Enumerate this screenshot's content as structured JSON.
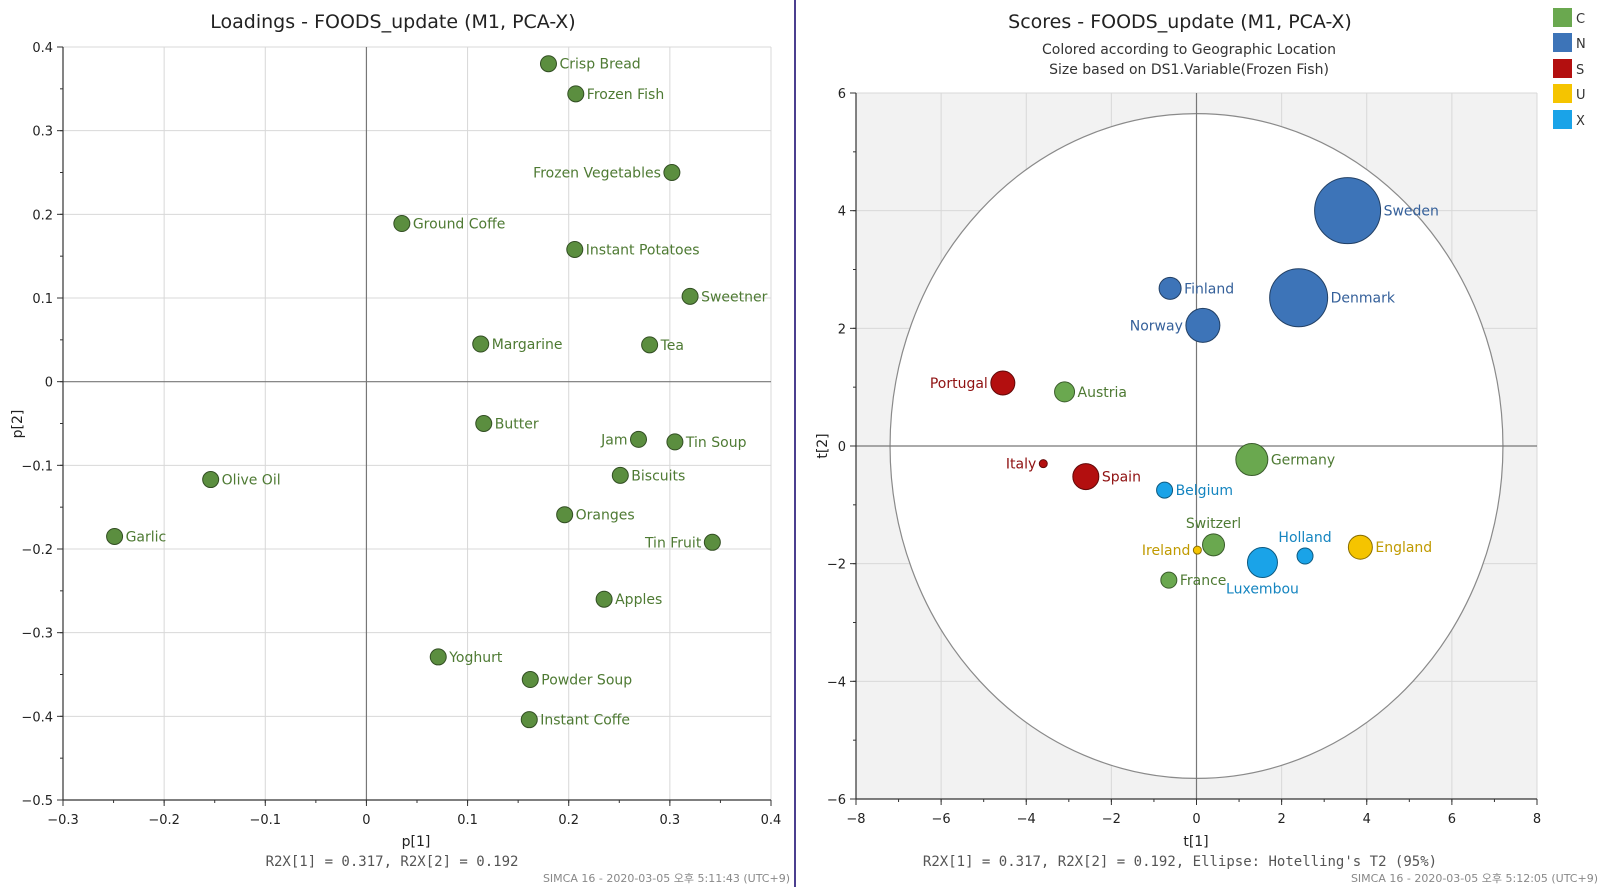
{
  "divider_color": "#4b3f8f",
  "loadings": {
    "title": "Loadings - FOODS_update (M1, PCA-X)",
    "xlabel": "p[1]",
    "ylabel": "p[2]",
    "footer": "R2X[1] = 0.317, R2X[2] = 0.192",
    "stamp": "SIMCA 16 - 2020-03-05 오후 5:11:43 (UTC+9)"
  },
  "scores": {
    "title": "Scores - FOODS_update (M1, PCA-X)",
    "subtitle1": "Colored according to Geographic Location",
    "subtitle2": "Size based on DS1.Variable(Frozen Fish)",
    "xlabel": "t[1]",
    "ylabel": "t[2]",
    "footer": "R2X[1] = 0.317, R2X[2] = 0.192, Ellipse: Hotelling's T2 (95%)",
    "stamp": "SIMCA 16 - 2020-03-05 오후 5:12:05 (UTC+9)",
    "legend": [
      {
        "label": "C",
        "color": "#6aa84f"
      },
      {
        "label": "N",
        "color": "#3d74b8"
      },
      {
        "label": "S",
        "color": "#b30f0f"
      },
      {
        "label": "U",
        "color": "#f5c400"
      },
      {
        "label": "X",
        "color": "#1aa3e8"
      }
    ]
  },
  "chart_data": [
    {
      "type": "scatter",
      "title": "Loadings - FOODS_update (M1, PCA-X)",
      "xlabel": "p[1]",
      "ylabel": "p[2]",
      "xlim": [
        -0.3,
        0.4
      ],
      "ylim": [
        -0.5,
        0.4
      ],
      "xticks": [
        -0.3,
        -0.2,
        -0.1,
        0,
        0.1,
        0.2,
        0.3,
        0.4
      ],
      "yticks": [
        -0.5,
        -0.4,
        -0.3,
        -0.2,
        -0.1,
        0,
        0.1,
        0.2,
        0.3,
        0.4
      ],
      "color": "#5b8e3f",
      "points": [
        {
          "label": "Crisp Bread",
          "x": 0.18,
          "y": 0.38,
          "pos": "right"
        },
        {
          "label": "Frozen Fish",
          "x": 0.207,
          "y": 0.344,
          "pos": "right"
        },
        {
          "label": "Frozen Vegetables",
          "x": 0.302,
          "y": 0.25,
          "pos": "left"
        },
        {
          "label": "Ground Coffe",
          "x": 0.035,
          "y": 0.189,
          "pos": "right"
        },
        {
          "label": "Instant Potatoes",
          "x": 0.206,
          "y": 0.158,
          "pos": "right"
        },
        {
          "label": "Sweetner",
          "x": 0.32,
          "y": 0.102,
          "pos": "right"
        },
        {
          "label": "Margarine",
          "x": 0.113,
          "y": 0.045,
          "pos": "right"
        },
        {
          "label": "Tea",
          "x": 0.28,
          "y": 0.044,
          "pos": "right"
        },
        {
          "label": "Butter",
          "x": 0.116,
          "y": -0.05,
          "pos": "right"
        },
        {
          "label": "Jam",
          "x": 0.269,
          "y": -0.069,
          "pos": "left"
        },
        {
          "label": "Tin Soup",
          "x": 0.305,
          "y": -0.072,
          "pos": "right"
        },
        {
          "label": "Olive Oil",
          "x": -0.154,
          "y": -0.117,
          "pos": "right"
        },
        {
          "label": "Biscuits",
          "x": 0.251,
          "y": -0.112,
          "pos": "right"
        },
        {
          "label": "Oranges",
          "x": 0.196,
          "y": -0.159,
          "pos": "right"
        },
        {
          "label": "Garlic",
          "x": -0.249,
          "y": -0.185,
          "pos": "right"
        },
        {
          "label": "Tin Fruit",
          "x": 0.342,
          "y": -0.192,
          "pos": "left"
        },
        {
          "label": "Apples",
          "x": 0.235,
          "y": -0.26,
          "pos": "right"
        },
        {
          "label": "Yoghurt",
          "x": 0.071,
          "y": -0.329,
          "pos": "right"
        },
        {
          "label": "Powder Soup",
          "x": 0.162,
          "y": -0.356,
          "pos": "right"
        },
        {
          "label": "Instant Coffe",
          "x": 0.161,
          "y": -0.404,
          "pos": "right"
        }
      ]
    },
    {
      "type": "scatter",
      "title": "Scores - FOODS_update (M1, PCA-X)",
      "subtitle": "Colored according to Geographic Location; Size based on DS1.Variable(Frozen Fish)",
      "xlabel": "t[1]",
      "ylabel": "t[2]",
      "xlim": [
        -8,
        8
      ],
      "ylim": [
        -6,
        6
      ],
      "xticks": [
        -8,
        -6,
        -4,
        -2,
        0,
        2,
        4,
        6,
        8
      ],
      "yticks": [
        -6,
        -4,
        -2,
        0,
        2,
        4,
        6
      ],
      "ellipse": {
        "name": "Hotelling's T2 (95%)",
        "rx": 7.2,
        "ry": 5.65
      },
      "legend_position": "top-right",
      "points": [
        {
          "label": "Sweden",
          "x": 3.55,
          "y": 4.0,
          "group": "N",
          "size": 33,
          "pos": "right"
        },
        {
          "label": "Denmark",
          "x": 2.4,
          "y": 2.52,
          "group": "N",
          "size": 29,
          "pos": "right"
        },
        {
          "label": "Finland",
          "x": -0.62,
          "y": 2.68,
          "group": "N",
          "size": 11,
          "pos": "right"
        },
        {
          "label": "Norway",
          "x": 0.15,
          "y": 2.05,
          "group": "N",
          "size": 17,
          "pos": "left"
        },
        {
          "label": "Portugal",
          "x": -4.55,
          "y": 1.07,
          "group": "S",
          "size": 12,
          "pos": "left"
        },
        {
          "label": "Austria",
          "x": -3.1,
          "y": 0.92,
          "group": "C",
          "size": 10,
          "pos": "right"
        },
        {
          "label": "Germany",
          "x": 1.3,
          "y": -0.23,
          "group": "C",
          "size": 16,
          "pos": "right"
        },
        {
          "label": "Italy",
          "x": -3.6,
          "y": -0.3,
          "group": "S",
          "size": 4,
          "pos": "left"
        },
        {
          "label": "Spain",
          "x": -2.6,
          "y": -0.52,
          "group": "S",
          "size": 13,
          "pos": "right"
        },
        {
          "label": "Belgium",
          "x": -0.75,
          "y": -0.75,
          "group": "X",
          "size": 8,
          "pos": "right"
        },
        {
          "label": "Switzerl",
          "x": 0.4,
          "y": -1.68,
          "group": "C",
          "size": 11,
          "pos": "above"
        },
        {
          "label": "Ireland",
          "x": 0.02,
          "y": -1.77,
          "group": "U",
          "size": 4,
          "pos": "left"
        },
        {
          "label": "Holland",
          "x": 2.55,
          "y": -1.87,
          "group": "X",
          "size": 8,
          "pos": "above"
        },
        {
          "label": "England",
          "x": 3.85,
          "y": -1.72,
          "group": "U",
          "size": 12,
          "pos": "right"
        },
        {
          "label": "Luxembou",
          "x": 1.55,
          "y": -1.98,
          "group": "X",
          "size": 15,
          "pos": "below"
        },
        {
          "label": "France",
          "x": -0.65,
          "y": -2.28,
          "group": "C",
          "size": 8,
          "pos": "right"
        }
      ]
    }
  ]
}
